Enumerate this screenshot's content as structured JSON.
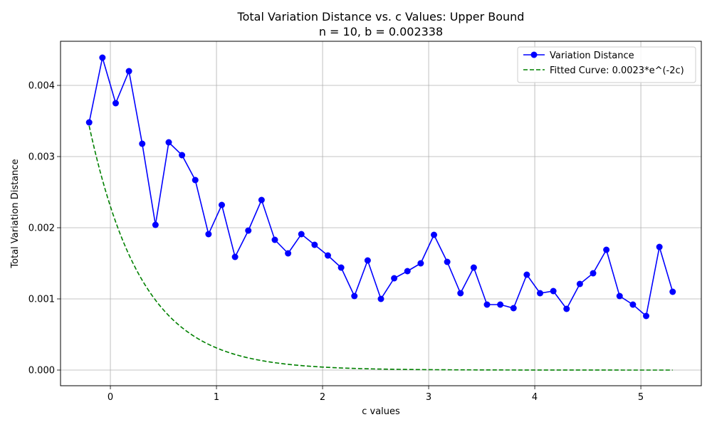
{
  "chart_data": {
    "type": "line",
    "title": "Total Variation Distance vs. c Values: Upper Bound",
    "subtitle": "n = 10, b = 0.002338",
    "xlabel": "c values",
    "ylabel": "Total Variation Distance",
    "xlim": [
      -0.47,
      5.57
    ],
    "ylim": [
      -0.00022,
      0.00462
    ],
    "xticks": [
      0,
      1,
      2,
      3,
      4,
      5
    ],
    "xtick_labels": [
      "0",
      "1",
      "2",
      "3",
      "4",
      "5"
    ],
    "yticks": [
      0.0,
      0.001,
      0.002,
      0.003,
      0.004
    ],
    "ytick_labels": [
      "0.000",
      "0.001",
      "0.002",
      "0.003",
      "0.004"
    ],
    "grid": true,
    "legend_position": "top-right",
    "series": [
      {
        "name": "Variation Distance",
        "color": "#0000ff",
        "marker": "circle",
        "line_style": "solid",
        "x": [
          -0.2,
          -0.075,
          0.05,
          0.175,
          0.3,
          0.425,
          0.55,
          0.675,
          0.8,
          0.925,
          1.05,
          1.175,
          1.3,
          1.425,
          1.55,
          1.675,
          1.8,
          1.925,
          2.05,
          2.175,
          2.3,
          2.425,
          2.55,
          2.675,
          2.8,
          2.925,
          3.05,
          3.175,
          3.3,
          3.425,
          3.55,
          3.675,
          3.8,
          3.925,
          4.05,
          4.175,
          4.3,
          4.425,
          4.55,
          4.675,
          4.8,
          4.925,
          5.05,
          5.175,
          5.3
        ],
        "y": [
          0.00348,
          0.00439,
          0.00375,
          0.0042,
          0.00318,
          0.00204,
          0.0032,
          0.00302,
          0.00267,
          0.00191,
          0.00232,
          0.00159,
          0.00196,
          0.00239,
          0.00183,
          0.00164,
          0.00191,
          0.00176,
          0.00161,
          0.00144,
          0.00104,
          0.00154,
          0.001,
          0.00129,
          0.00139,
          0.0015,
          0.0019,
          0.00152,
          0.00108,
          0.00144,
          0.00092,
          0.00092,
          0.00087,
          0.00134,
          0.00108,
          0.00111,
          0.00086,
          0.00121,
          0.00136,
          0.00169,
          0.00104,
          0.00092,
          0.00076,
          0.00173,
          0.0011
        ]
      },
      {
        "name": "Fitted Curve: 0.0023*e^(-2c)",
        "color": "#008000",
        "line_style": "dashed",
        "formula": {
          "a": 0.0023,
          "k": -2,
          "x_start": -0.2,
          "x_end": 5.3
        }
      }
    ]
  }
}
